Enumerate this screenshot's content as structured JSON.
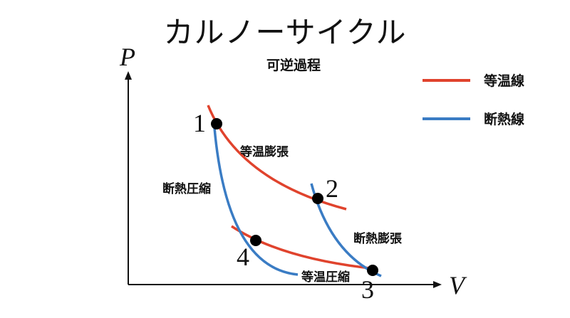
{
  "title": "カルノーサイクル",
  "subtitle": "可逆過程",
  "axes": {
    "y_label": "P",
    "x_label": "V"
  },
  "legend": [
    {
      "label": "等温線",
      "color": "#e0432d"
    },
    {
      "label": "断熱線",
      "color": "#3a7cc4"
    }
  ],
  "points": [
    {
      "label": "1"
    },
    {
      "label": "2"
    },
    {
      "label": "3"
    },
    {
      "label": "4"
    }
  ],
  "processes": {
    "isothermal_expansion": "等温膨張",
    "adiabatic_expansion": "断熱膨張",
    "isothermal_compression": "等温圧縮",
    "adiabatic_compression": "断熱圧縮"
  },
  "colors": {
    "isotherm": "#e0432d",
    "adiabat": "#3a7cc4",
    "point": "#000000",
    "axis": "#111111"
  }
}
